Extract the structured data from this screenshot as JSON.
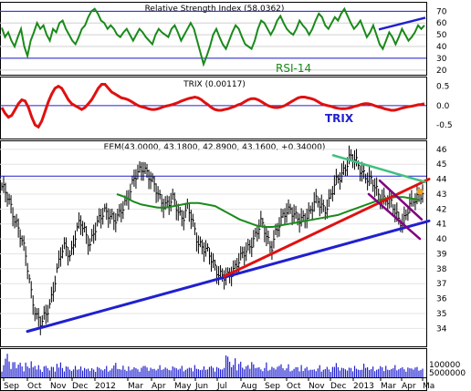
{
  "chart_data": [
    {
      "panel": "rsi",
      "type": "line",
      "title": "Relative Strength Index (58.0362)",
      "annotation": "RSI-14",
      "ylim": [
        16,
        78
      ],
      "yticks": [
        20,
        30,
        40,
        50,
        60,
        70
      ],
      "reference_lines": [
        70,
        30
      ],
      "grid": "horizontal",
      "colors": {
        "line": "#1a8a1a",
        "annotation": "#1a8a1a",
        "trendline": "#2020d0",
        "reference": "#2020d0"
      },
      "series": [
        {
          "values": [
            56,
            48,
            52,
            45,
            40,
            48,
            55,
            40,
            32,
            45,
            52,
            60,
            55,
            58,
            50,
            45,
            55,
            52,
            60,
            62,
            55,
            50,
            45,
            42,
            48,
            55,
            58,
            65,
            70,
            72,
            68,
            62,
            60,
            55,
            58,
            55,
            50,
            48,
            52,
            55,
            50,
            45,
            50,
            55,
            52,
            48,
            45,
            42,
            50,
            55,
            52,
            50,
            48,
            55,
            58,
            52,
            45,
            50,
            55,
            60,
            55,
            45,
            35,
            25,
            32,
            40,
            50,
            55,
            48,
            42,
            38,
            45,
            52,
            58,
            55,
            48,
            42,
            40,
            38,
            45,
            55,
            62,
            60,
            55,
            50,
            55,
            62,
            66,
            60,
            55,
            52,
            50,
            55,
            62,
            58,
            55,
            50,
            55,
            62,
            68,
            65,
            58,
            55,
            60,
            65,
            62,
            68,
            72,
            66,
            60,
            55,
            58,
            62,
            55,
            48,
            52,
            58,
            50,
            42,
            38,
            45,
            52,
            48,
            42,
            48,
            55,
            50,
            45,
            48,
            52,
            58,
            55,
            58
          ]
        }
      ],
      "trendline": {
        "from_value": 54.5,
        "to_value": 64.5
      }
    },
    {
      "panel": "trix",
      "type": "line",
      "title": "TRIX (0.00117)",
      "annotation": "TRIX",
      "ylim": [
        -0.85,
        0.75
      ],
      "yticks": [
        0.5,
        0.0,
        -0.5
      ],
      "ytick_labels": [
        "0.5",
        "0.0",
        "-0.5"
      ],
      "reference_lines": [
        0.0
      ],
      "colors": {
        "line": "#e01010",
        "annotation": "#2020d0",
        "reference": "#2020d0"
      },
      "series": [
        {
          "values": [
            -0.05,
            -0.2,
            -0.3,
            -0.25,
            -0.1,
            0.05,
            0.15,
            0.12,
            -0.05,
            -0.3,
            -0.5,
            -0.55,
            -0.4,
            -0.15,
            0.1,
            0.3,
            0.45,
            0.5,
            0.45,
            0.3,
            0.15,
            0.05,
            0.0,
            -0.05,
            -0.1,
            -0.05,
            0.05,
            0.15,
            0.3,
            0.45,
            0.55,
            0.55,
            0.45,
            0.35,
            0.3,
            0.25,
            0.2,
            0.18,
            0.15,
            0.1,
            0.05,
            0.0,
            -0.03,
            -0.05,
            -0.08,
            -0.1,
            -0.1,
            -0.08,
            -0.05,
            -0.02,
            0.0,
            0.02,
            0.05,
            0.08,
            0.12,
            0.15,
            0.18,
            0.2,
            0.22,
            0.2,
            0.15,
            0.08,
            0.02,
            -0.05,
            -0.1,
            -0.12,
            -0.12,
            -0.1,
            -0.08,
            -0.05,
            -0.02,
            0.02,
            0.05,
            0.1,
            0.15,
            0.18,
            0.18,
            0.15,
            0.1,
            0.05,
            0.0,
            -0.03,
            -0.05,
            -0.05,
            -0.03,
            0.0,
            0.05,
            0.1,
            0.15,
            0.2,
            0.22,
            0.22,
            0.2,
            0.18,
            0.15,
            0.1,
            0.05,
            0.02,
            0.0,
            -0.02,
            -0.05,
            -0.07,
            -0.08,
            -0.08,
            -0.07,
            -0.05,
            -0.02,
            0.0,
            0.03,
            0.05,
            0.05,
            0.03,
            0.0,
            -0.03,
            -0.05,
            -0.08,
            -0.1,
            -0.12,
            -0.12,
            -0.1,
            -0.07,
            -0.05,
            -0.03,
            -0.02,
            0.0,
            0.02,
            0.03,
            0.05
          ]
        }
      ]
    },
    {
      "panel": "price",
      "type": "line",
      "title": "EEM(43.0000, 43.1800, 42.8900, 43.1600, +0.34000)",
      "ylim": [
        32.8,
        46.6
      ],
      "yticks": [
        34,
        35,
        36,
        37,
        38,
        39,
        40,
        41,
        42,
        43,
        44,
        45,
        46
      ],
      "reference_lines": [
        44.2
      ],
      "colors": {
        "price": "#000000",
        "moving_average": "#1a8a1a",
        "support_trendline": "#2020d0",
        "uptrend_line": "#e01010",
        "resistance_line": "#40c080",
        "channel_lines": "#800080",
        "reference": "#2020d0",
        "marker": "#f0a020"
      },
      "series": [
        {
          "values": [
            43.5,
            42.8,
            42.0,
            41.2,
            40.0,
            38.5,
            36.5,
            35.0,
            34.2,
            34.8,
            36.0,
            37.5,
            38.8,
            39.5,
            39.0,
            40.2,
            41.0,
            40.5,
            39.8,
            40.5,
            41.2,
            42.0,
            41.8,
            41.0,
            41.5,
            42.5,
            43.0,
            43.8,
            44.5,
            45.0,
            44.2,
            43.5,
            43.0,
            42.5,
            42.2,
            42.6,
            42.0,
            41.5,
            42.0,
            41.0,
            40.0,
            39.5,
            39.0,
            38.5,
            38.0,
            37.5,
            37.2,
            37.8,
            38.5,
            38.8,
            39.0,
            39.8,
            40.5,
            41.0,
            40.2,
            39.5,
            40.5,
            41.0,
            41.8,
            42.2,
            41.5,
            41.0,
            41.5,
            42.0,
            42.5,
            42.2,
            42.0,
            42.8,
            43.5,
            44.0,
            44.8,
            45.5,
            45.2,
            44.8,
            44.5,
            44.0,
            43.5,
            43.0,
            42.8,
            42.5,
            42.0,
            41.5,
            41.2,
            41.8,
            42.5,
            43.0,
            43.16
          ]
        },
        {
          "values": [
            43.0,
            42.8,
            42.5,
            42.3,
            42.2,
            42.1,
            42.1,
            42.2,
            42.3,
            42.4,
            42.4,
            42.3,
            42.2,
            41.9,
            41.6,
            41.3,
            41.1,
            40.9,
            40.8,
            40.8,
            40.9,
            41.0,
            41.1,
            41.2,
            41.3,
            41.4,
            41.5,
            41.6,
            41.8,
            42.0,
            42.2,
            42.4,
            42.6,
            42.7,
            42.8,
            42.8,
            42.7,
            42.6
          ]
        }
      ],
      "trendlines": [
        {
          "name": "support",
          "from_value": 33.8,
          "to_value": 41.2
        },
        {
          "name": "uptrend",
          "from_value": 37.5,
          "to_value": 44.0
        },
        {
          "name": "resistance",
          "from_value": 45.6,
          "to_value": 43.8
        },
        {
          "name": "channel_upper",
          "from_value": 43.9,
          "to_value": 41.3
        },
        {
          "name": "channel_lower",
          "from_value": 43.0,
          "to_value": 40.0
        }
      ]
    },
    {
      "panel": "volume",
      "type": "bar",
      "ytick_labels": [
        "100000",
        "5000000"
      ],
      "colors": {
        "bars": "#2020d0"
      },
      "series": [
        {
          "values": [
            30,
            45,
            80,
            95,
            60,
            40,
            55,
            70,
            35,
            50,
            65,
            40,
            30,
            55,
            45,
            38,
            60,
            50,
            42,
            35,
            48,
            30,
            25,
            40,
            55,
            35,
            28,
            45,
            38,
            30,
            50,
            42,
            60,
            35,
            28,
            40,
            48,
            30,
            25,
            35,
            42,
            38,
            30,
            45,
            28,
            35,
            40,
            32,
            28,
            36,
            30,
            25,
            38,
            45,
            30,
            28,
            35,
            42,
            30,
            26,
            38,
            48,
            55,
            40,
            30,
            35,
            45,
            30,
            28,
            40,
            35,
            30,
            42,
            38,
            30,
            28,
            35,
            50,
            45,
            38,
            30,
            35,
            40,
            32,
            28,
            36,
            45,
            38,
            30,
            42,
            35,
            28,
            33,
            40,
            45,
            35,
            30,
            38,
            42,
            30,
            28,
            36,
            40,
            35,
            30,
            45,
            38,
            32,
            28,
            35,
            40,
            36,
            30,
            42,
            48,
            35,
            30,
            38,
            40,
            32
          ]
        }
      ]
    }
  ],
  "x_axis": {
    "tick_labels": [
      "Sep",
      "Oct",
      "Nov",
      "Dec",
      "2012",
      "Mar",
      "Apr",
      "May",
      "Jun",
      "Jul",
      "Aug",
      "Sep",
      "Oct",
      "Nov",
      "Dec",
      "2013",
      "Mar",
      "Apr",
      "Ma"
    ]
  }
}
